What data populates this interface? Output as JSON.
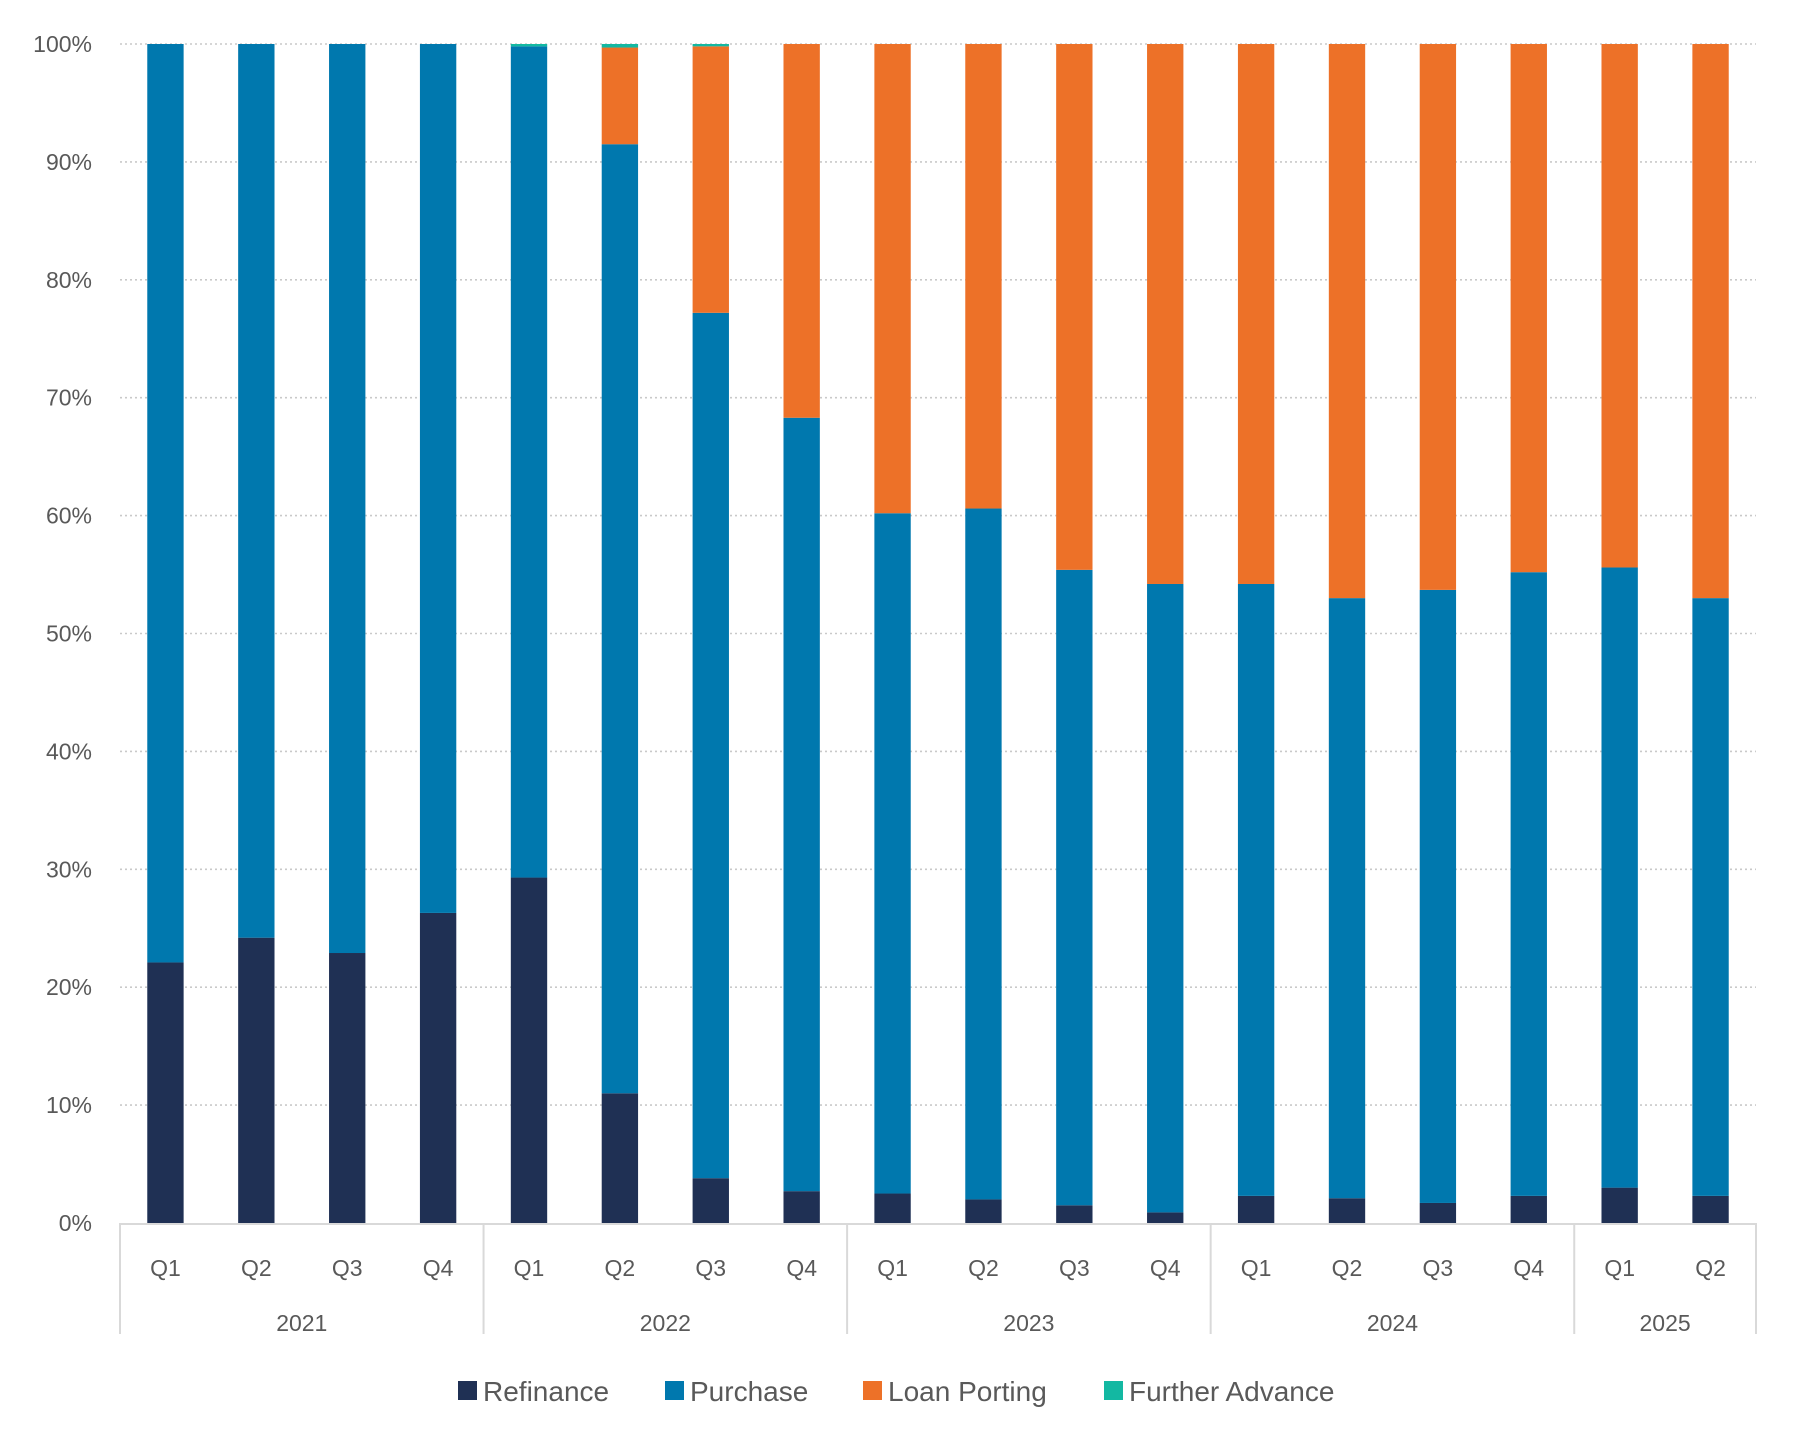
{
  "chart_data": {
    "type": "bar",
    "stacked": true,
    "normalized": true,
    "title": "",
    "xlabel": "",
    "ylabel": "",
    "ylim": [
      0,
      100
    ],
    "y_ticks": [
      "0%",
      "10%",
      "20%",
      "30%",
      "40%",
      "50%",
      "60%",
      "70%",
      "80%",
      "90%",
      "100%"
    ],
    "y_tick_values": [
      0,
      10,
      20,
      30,
      40,
      50,
      60,
      70,
      80,
      90,
      100
    ],
    "grid": true,
    "grid_style": "dotted",
    "legend_position": "bottom",
    "categories": [
      "2021 Q1",
      "2021 Q2",
      "2021 Q3",
      "2021 Q4",
      "2022 Q1",
      "2022 Q2",
      "2022 Q3",
      "2022 Q4",
      "2023 Q1",
      "2023 Q2",
      "2023 Q3",
      "2023 Q4",
      "2024 Q1",
      "2024 Q2",
      "2024 Q3",
      "2024 Q4",
      "2025 Q1",
      "2025 Q2"
    ],
    "quarter_labels": [
      "Q1",
      "Q2",
      "Q3",
      "Q4",
      "Q1",
      "Q2",
      "Q3",
      "Q4",
      "Q1",
      "Q2",
      "Q3",
      "Q4",
      "Q1",
      "Q2",
      "Q3",
      "Q4",
      "Q1",
      "Q2"
    ],
    "year_groups": [
      {
        "label": "2021",
        "count": 4
      },
      {
        "label": "2022",
        "count": 4
      },
      {
        "label": "2023",
        "count": 4
      },
      {
        "label": "2024",
        "count": 4
      },
      {
        "label": "2025",
        "count": 2
      }
    ],
    "series": [
      {
        "name": "Refinance",
        "color": "#1f3054",
        "values": [
          22.1,
          24.2,
          22.9,
          26.3,
          29.3,
          11.0,
          3.8,
          2.7,
          2.5,
          2.0,
          1.5,
          0.9,
          2.3,
          2.1,
          1.7,
          2.3,
          3.0,
          2.3
        ]
      },
      {
        "name": "Purchase",
        "color": "#0078ae",
        "values": [
          77.9,
          75.8,
          77.1,
          73.7,
          70.5,
          80.5,
          73.4,
          65.6,
          57.7,
          58.6,
          53.9,
          53.3,
          51.9,
          50.9,
          52.0,
          52.9,
          52.6,
          50.7
        ]
      },
      {
        "name": "Loan Porting",
        "color": "#ed7128",
        "values": [
          0.0,
          0.0,
          0.0,
          0.0,
          0.0,
          8.2,
          22.6,
          31.7,
          39.8,
          39.4,
          44.6,
          45.8,
          45.8,
          47.0,
          46.3,
          44.8,
          44.4,
          47.0
        ]
      },
      {
        "name": "Further Advance",
        "color": "#13b8a2",
        "values": [
          0.0,
          0.0,
          0.0,
          0.0,
          0.2,
          0.3,
          0.2,
          0.0,
          0.0,
          0.0,
          0.0,
          0.0,
          0.0,
          0.0,
          0.0,
          0.0,
          0.0,
          0.0
        ]
      }
    ]
  },
  "legend": {
    "items": [
      {
        "label": "Refinance",
        "color": "#1f3054"
      },
      {
        "label": "Purchase",
        "color": "#0078ae"
      },
      {
        "label": "Loan Porting",
        "color": "#ed7128"
      },
      {
        "label": "Further Advance",
        "color": "#13b8a2"
      }
    ]
  }
}
